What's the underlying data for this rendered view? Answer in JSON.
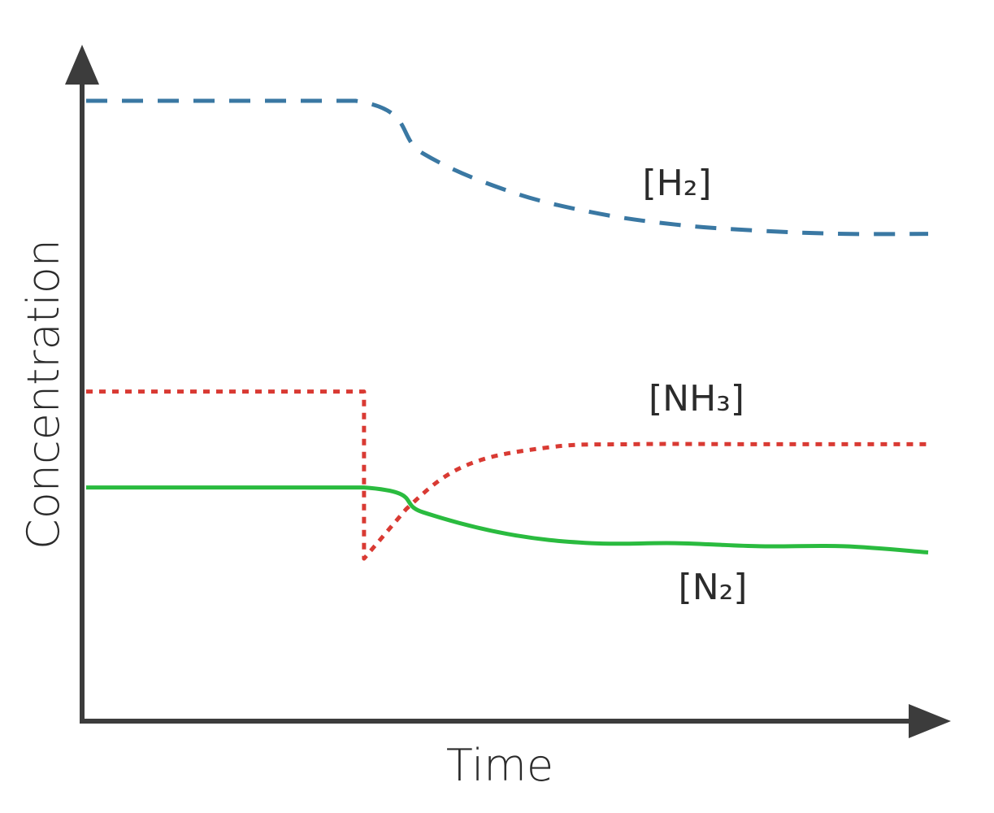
{
  "chart_data": {
    "type": "line",
    "xlabel": "Time",
    "ylabel": "Concentration",
    "x_ticks": [],
    "y_ticks": [],
    "grid": false,
    "legend": "none",
    "series": [
      {
        "name": "[H2]",
        "color": "#3a78a3",
        "style": "dashed",
        "points": [
          [
            0,
            10.0
          ],
          [
            3.2,
            10.0
          ],
          [
            4.0,
            9.15
          ],
          [
            5.0,
            8.55
          ],
          [
            6.0,
            8.2
          ],
          [
            7.0,
            8.0
          ],
          [
            8.0,
            7.9
          ],
          [
            9.0,
            7.85
          ],
          [
            10.0,
            7.85
          ]
        ]
      },
      {
        "name": "[NH3]",
        "color": "#d93a33",
        "style": "dotted",
        "points": [
          [
            0,
            5.3
          ],
          [
            3.3,
            5.3
          ],
          [
            3.3,
            2.6
          ],
          [
            3.8,
            3.4
          ],
          [
            4.5,
            4.1
          ],
          [
            5.5,
            4.4
          ],
          [
            6.5,
            4.45
          ],
          [
            8.0,
            4.45
          ],
          [
            10.0,
            4.45
          ]
        ]
      },
      {
        "name": "[N2]",
        "color": "#2abb3f",
        "style": "solid",
        "points": [
          [
            0,
            3.75
          ],
          [
            3.3,
            3.75
          ],
          [
            4.0,
            3.35
          ],
          [
            5.0,
            3.0
          ],
          [
            6.0,
            2.85
          ],
          [
            7.0,
            2.85
          ],
          [
            8.0,
            2.8
          ],
          [
            9.0,
            2.8
          ],
          [
            10.0,
            2.7
          ]
        ]
      }
    ]
  },
  "labels": {
    "h2": "[H₂]",
    "nh3": "[NH₃]",
    "n2": "[N₂]"
  }
}
